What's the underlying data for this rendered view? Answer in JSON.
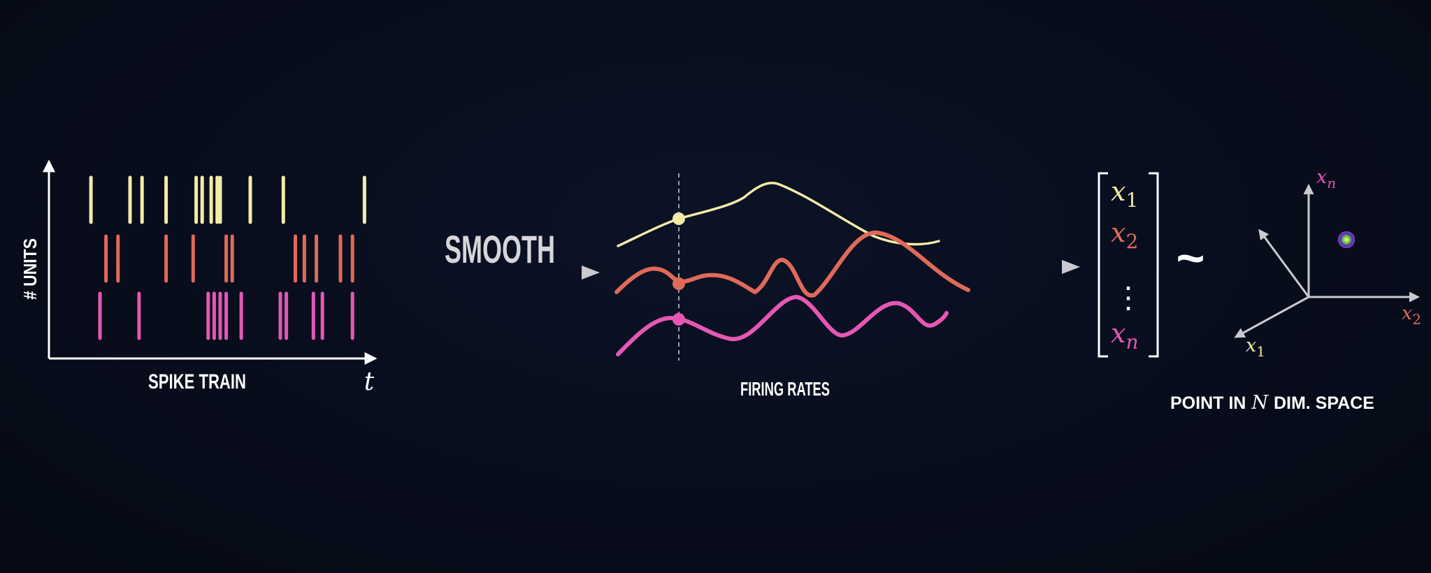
{
  "colors": {
    "cream": "#f3eba8",
    "salmon": "#e06a5a",
    "pink": "#e657b4",
    "white": "#ffffff",
    "gray": "#c9c9cf"
  },
  "spike_train": {
    "y_axis_label": "# UNITS",
    "x_axis_label": "SPIKE TRAIN",
    "time_symbol": "t",
    "rows": [
      {
        "color_key": "cream",
        "spike_times": [
          0.07,
          0.2,
          0.24,
          0.32,
          0.42,
          0.44,
          0.47,
          0.49,
          0.5,
          0.6,
          0.71,
          0.98
        ]
      },
      {
        "color_key": "salmon",
        "spike_times": [
          0.12,
          0.16,
          0.32,
          0.41,
          0.52,
          0.54,
          0.75,
          0.78,
          0.82,
          0.9,
          0.94
        ]
      },
      {
        "color_key": "pink",
        "spike_times": [
          0.1,
          0.23,
          0.46,
          0.48,
          0.5,
          0.52,
          0.57,
          0.7,
          0.72,
          0.81,
          0.84,
          0.94
        ]
      }
    ]
  },
  "smooth_label": "SMOOTH",
  "firing_rates": {
    "label": "FIRING RATES",
    "series_colors": [
      "cream",
      "salmon",
      "pink"
    ]
  },
  "vector": {
    "entries": [
      {
        "base": "x",
        "sub": "1",
        "color_key": "cream"
      },
      {
        "base": "x",
        "sub": "2",
        "color_key": "salmon"
      },
      {
        "dots": "⋮"
      },
      {
        "base": "x",
        "sub": "n",
        "color_key": "pink"
      }
    ],
    "tilde": "~"
  },
  "space": {
    "axis_labels": [
      {
        "base": "x",
        "sub": "n",
        "color_key": "pink"
      },
      {
        "base": "x",
        "sub": "2",
        "color_key": "salmon"
      },
      {
        "base": "x",
        "sub": "1",
        "color_key": "cream"
      }
    ],
    "caption_prefix": "POINT IN",
    "caption_symbol": "N",
    "caption_suffix": "DIM. SPACE"
  }
}
